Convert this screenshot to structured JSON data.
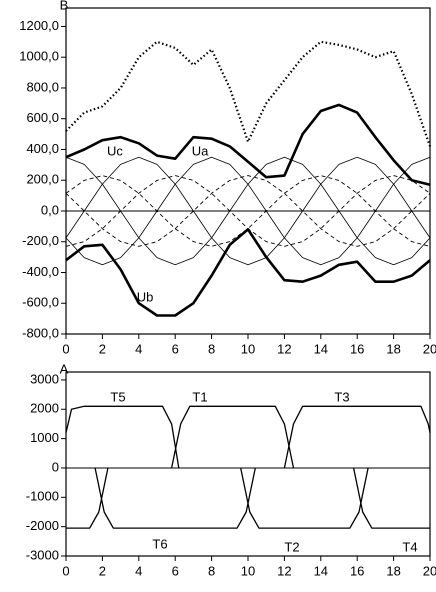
{
  "chart_data": [
    {
      "type": "line",
      "ylabel": "B",
      "x": [
        0,
        1,
        2,
        3,
        4,
        5,
        6,
        7,
        8,
        9,
        10,
        11,
        12,
        13,
        14,
        15,
        16,
        17,
        18,
        19,
        20
      ],
      "xlim": [
        0,
        20
      ],
      "xticks": [
        0,
        2,
        4,
        6,
        8,
        10,
        12,
        14,
        16,
        18,
        20
      ],
      "ylim": [
        -800,
        1320
      ],
      "yticks": [
        {
          "value": 1200,
          "label": "1200,0"
        },
        {
          "value": 1000,
          "label": "1000,0"
        },
        {
          "value": 800,
          "label": "800,0"
        },
        {
          "value": 600,
          "label": "600,0"
        },
        {
          "value": 400,
          "label": "400,0"
        },
        {
          "value": 200,
          "label": "200,0"
        },
        {
          "value": 0,
          "label": "0,0"
        },
        {
          "value": -200,
          "label": "-200,0"
        },
        {
          "value": -400,
          "label": "-400,0"
        },
        {
          "value": -600,
          "label": "-600,0"
        },
        {
          "value": -800,
          "label": "-800,0"
        }
      ],
      "annotations": [
        "Uc",
        "Ua",
        "Ub"
      ],
      "series": [
        {
          "style": "dotted",
          "color": "#000",
          "values": [
            520,
            640,
            680,
            800,
            1000,
            1100,
            1060,
            950,
            1050,
            800,
            450,
            700,
            850,
            1000,
            1100,
            1080,
            1050,
            1000,
            1040,
            760,
            420
          ]
        },
        {
          "style": "thick",
          "color": "#000",
          "values": [
            350,
            400,
            460,
            480,
            440,
            360,
            340,
            480,
            470,
            420,
            320,
            220,
            230,
            500,
            650,
            690,
            640,
            480,
            330,
            200,
            170
          ]
        },
        {
          "style": "thick",
          "color": "#000",
          "values": [
            -320,
            -230,
            -220,
            -380,
            -600,
            -680,
            -680,
            -600,
            -420,
            -220,
            -120,
            -300,
            -450,
            -460,
            -420,
            -350,
            -330,
            -460,
            -460,
            -420,
            -320
          ]
        },
        {
          "style": "thin",
          "color": "#000",
          "values": [
            -175,
            0,
            175,
            303,
            350,
            303,
            175,
            0,
            -175,
            -303,
            -350,
            -303,
            -175,
            0,
            175,
            303,
            350,
            303,
            175,
            0,
            -175
          ]
        },
        {
          "style": "thin",
          "color": "#000",
          "values": [
            -175,
            -303,
            -350,
            -303,
            -175,
            0,
            175,
            303,
            350,
            303,
            175,
            0,
            -175,
            -303,
            -350,
            -303,
            -175,
            0,
            175,
            303,
            350
          ]
        },
        {
          "style": "thin",
          "color": "#000",
          "values": [
            350,
            303,
            175,
            0,
            -175,
            -303,
            -350,
            -303,
            -175,
            0,
            175,
            303,
            350,
            303,
            175,
            0,
            -175,
            -303,
            -350,
            -303,
            -175
          ]
        },
        {
          "style": "dashed",
          "color": "#000",
          "values": [
            -230,
            -199,
            -115,
            0,
            115,
            199,
            230,
            199,
            115,
            0,
            -115,
            -199,
            -230,
            -199,
            -115,
            0,
            115,
            199,
            230,
            199,
            115
          ]
        },
        {
          "style": "dashed",
          "color": "#000",
          "values": [
            115,
            0,
            -115,
            -199,
            -230,
            -199,
            -115,
            0,
            115,
            199,
            230,
            199,
            115,
            0,
            -115,
            -199,
            -230,
            -199,
            -115,
            0,
            115
          ]
        },
        {
          "style": "dashed",
          "color": "#000",
          "values": [
            115,
            199,
            230,
            199,
            115,
            0,
            -115,
            -199,
            -230,
            -199,
            -115,
            0,
            115,
            199,
            230,
            199,
            115,
            0,
            -115,
            -199,
            -230
          ]
        }
      ]
    },
    {
      "type": "line",
      "ylabel": "A",
      "xlim": [
        0,
        20
      ],
      "xticks": [
        0,
        2,
        4,
        6,
        8,
        10,
        12,
        14,
        16,
        18,
        20
      ],
      "ylim": [
        -3000,
        3270
      ],
      "yticks": [
        3000,
        2000,
        1000,
        0,
        -1000,
        -2000,
        -3000
      ],
      "series": [
        {
          "name": "T5",
          "color": "#000",
          "x": [
            0,
            0.3,
            1,
            5.3,
            5.8,
            6.2
          ],
          "values": [
            1200,
            2000,
            2100,
            2100,
            1500,
            0
          ]
        },
        {
          "name": "T1",
          "color": "#000",
          "x": [
            5.8,
            6.3,
            6.8,
            11.5,
            12.0,
            12.5
          ],
          "values": [
            0,
            1500,
            2100,
            2100,
            1500,
            0
          ]
        },
        {
          "name": "T3",
          "color": "#000",
          "x": [
            12.0,
            12.5,
            13.0,
            19.5,
            19.9,
            20
          ],
          "values": [
            0,
            1500,
            2100,
            2100,
            1500,
            1200
          ]
        },
        {
          "name": "T6",
          "color": "#000",
          "x": [
            1.6,
            2.1,
            2.6,
            9.4,
            9.9,
            10.4
          ],
          "values": [
            0,
            -1500,
            -2050,
            -2050,
            -1500,
            0
          ]
        },
        {
          "name": "T2",
          "color": "#000",
          "x": [
            9.6,
            10.1,
            10.6,
            15.6,
            16.1,
            16.6
          ],
          "values": [
            0,
            -1500,
            -2050,
            -2050,
            -1500,
            0
          ]
        },
        {
          "name": "T4",
          "color": "#000",
          "x": [
            0,
            1.3,
            1.8,
            2.3,
            null,
            15.8,
            16.3,
            16.8,
            20
          ],
          "values": [
            -2050,
            -2050,
            -1500,
            0,
            null,
            0,
            -1500,
            -2050,
            -2050
          ]
        }
      ]
    }
  ]
}
